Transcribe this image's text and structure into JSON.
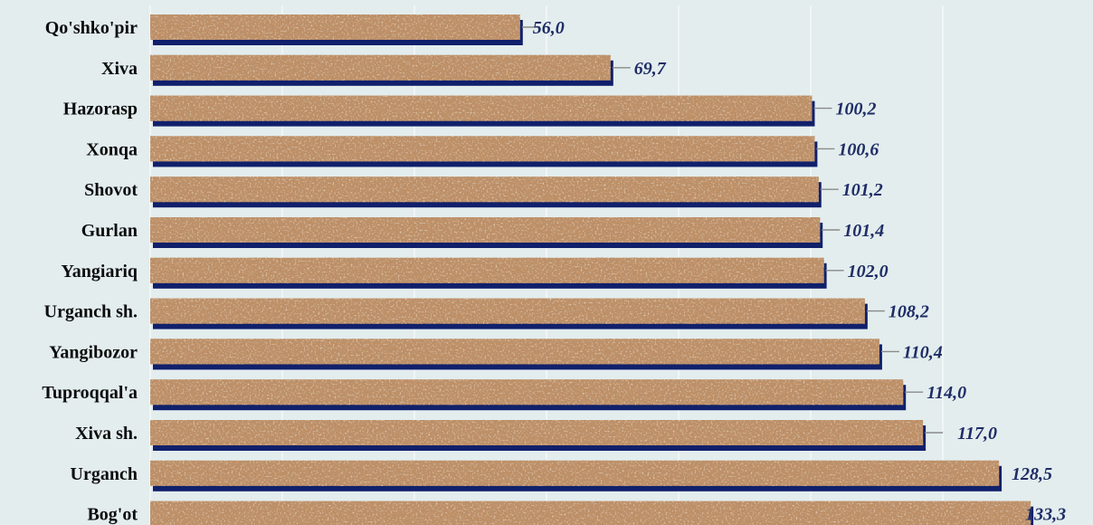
{
  "chart_data": {
    "type": "bar",
    "orientation": "horizontal",
    "categories": [
      "Qo'shko'pir",
      "Xiva",
      "Hazorasp",
      "Xonqa",
      "Shovot",
      "Gurlan",
      "Yangiariq",
      "Urganch sh.",
      "Yangibozor",
      "Tuproqqal'a",
      "Xiva sh.",
      "Urganch",
      "Bog'ot"
    ],
    "values": [
      56.0,
      69.7,
      100.2,
      100.6,
      101.2,
      101.4,
      102.0,
      108.2,
      110.4,
      114.0,
      117.0,
      128.5,
      133.3
    ],
    "value_labels": [
      "56,0",
      "69,7",
      "100,2",
      "100,6",
      "101,2",
      "101,4",
      "102,0",
      "108,2",
      "110,4",
      "114,0",
      "117,0",
      "128,5",
      "133,3"
    ],
    "xlim": [
      0,
      134
    ],
    "grid": true,
    "legend": "none",
    "bar_fill": "cork-texture",
    "colors": {
      "background": "#e3edee",
      "bar_base": "#c39066",
      "bar_shadow": "#10206b",
      "gridline": "#f4f8f8",
      "category_text": "#0d0d0d",
      "value_text": "#1f2d66",
      "leader_line": "#8a8a8a"
    }
  }
}
